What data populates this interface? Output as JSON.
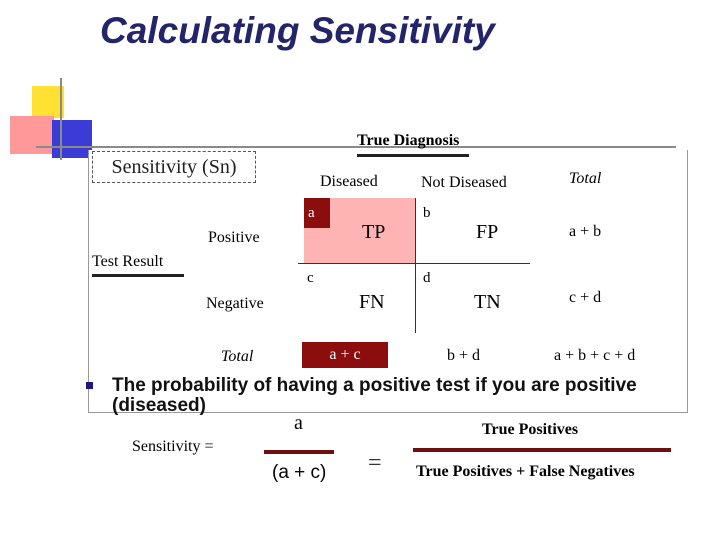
{
  "title": "Calculating Sensitivity",
  "true_diagnosis": "True Diagnosis",
  "sensitivity_box": "Sensitivity (Sn)",
  "columns": {
    "diseased": "Diseased",
    "not_diseased": "Not Diseased",
    "total": "Total"
  },
  "rows": {
    "test_result": "Test Result",
    "positive": "Positive",
    "negative": "Negative",
    "total": "Total"
  },
  "cells": {
    "a": "a",
    "b": "b",
    "c": "c",
    "d": "d",
    "tp": "TP",
    "fp": "FP",
    "fn": "FN",
    "tn": "TN"
  },
  "totals": {
    "row_pos": "a + b",
    "row_neg": "c + d",
    "col_dis": "a + c",
    "col_not": "b + d",
    "grand": "a + b + c + d"
  },
  "statement": "The probability of having a positive test if you are positive (diseased)",
  "formula": {
    "label": "Sensitivity =",
    "numerator": "a",
    "denominator": "(a + c)",
    "equals": "=",
    "numerator2": "True Positives",
    "denominator2": "True Positives + False Negatives"
  },
  "colors": {
    "title": "#24246b",
    "dark_red": "#8b0d0d",
    "pink": "#ffb4b4"
  }
}
